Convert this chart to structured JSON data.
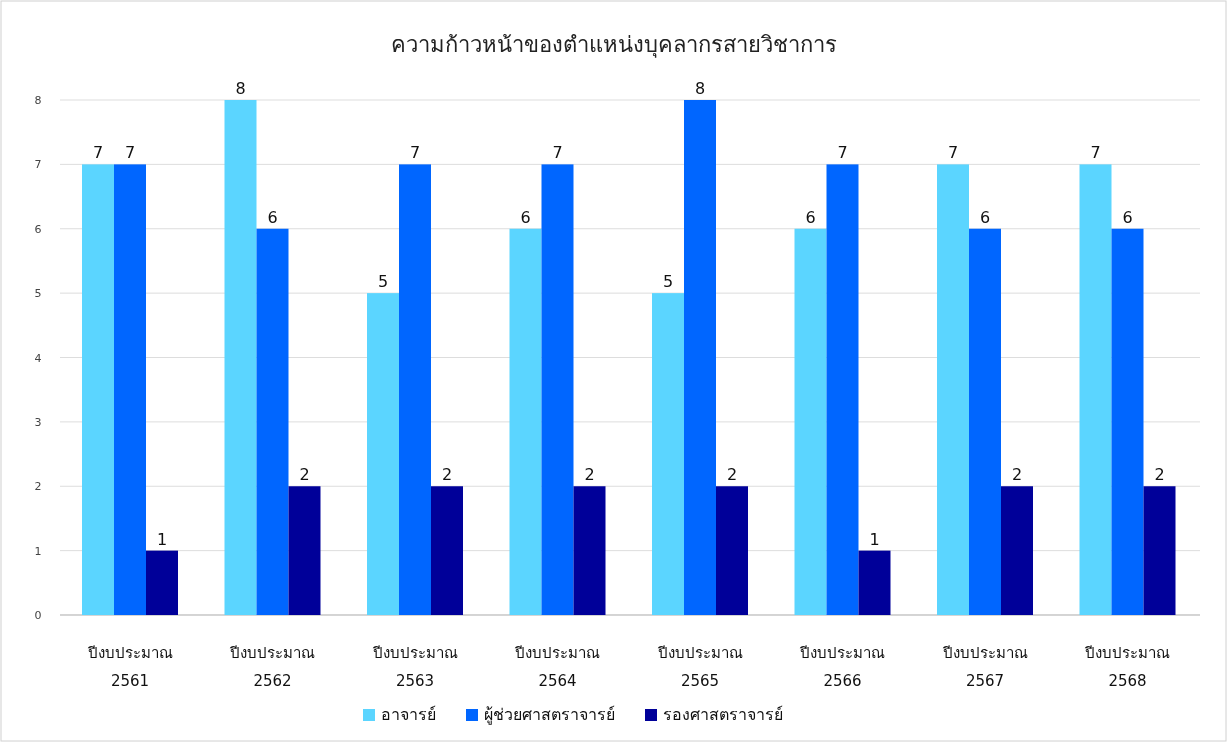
{
  "chart_data": {
    "type": "bar",
    "title": "ความก้าวหน้าของตำแหน่งบุคลากรสายวิชาการ",
    "categories": [
      "ปีงบประมาณ 2561",
      "ปีงบประมาณ 2562",
      "ปีงบประมาณ 2563",
      "ปีงบประมาณ 2564",
      "ปีงบประมาณ 2565",
      "ปีงบประมาณ 2566",
      "ปีงบประมาณ 2567",
      "ปีงบประมาณ 2568"
    ],
    "series": [
      {
        "name": "อาจารย์",
        "color": "#5bd5ff",
        "values": [
          7,
          8,
          5,
          6,
          5,
          6,
          7,
          7
        ]
      },
      {
        "name": "ผู้ช่วยศาสตราจารย์",
        "color": "#0066ff",
        "values": [
          7,
          6,
          7,
          7,
          8,
          7,
          6,
          6
        ]
      },
      {
        "name": "รองศาสตราจารย์",
        "color": "#000099",
        "values": [
          1,
          2,
          2,
          2,
          2,
          1,
          2,
          2
        ]
      }
    ],
    "ylim": [
      0,
      8
    ],
    "yticks": [
      0,
      1,
      2,
      3,
      4,
      5,
      6,
      7,
      8
    ],
    "grid": "y",
    "legend": "bottom",
    "data_labels": true
  }
}
